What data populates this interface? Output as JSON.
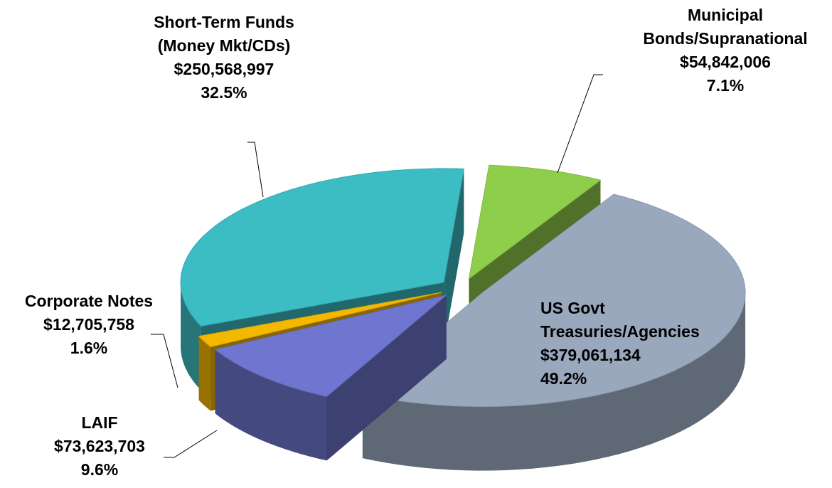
{
  "chart_data": {
    "type": "pie3d",
    "categories": [
      "US Govt Treasuries/Agencies",
      "LAIF",
      "Corporate Notes",
      "Short-Term Funds (Money Mkt/CDs)",
      "Municipal Bonds/Supranational"
    ],
    "values": [
      379061134,
      73623703,
      12705758,
      250568997,
      54842006
    ],
    "value_labels": [
      "$379,061,134",
      "$73,623,703",
      "$12,705,758",
      "$250,568,997",
      "$54,842,006"
    ],
    "percent_labels": [
      "49.2%",
      "9.6%",
      "1.6%",
      "32.5%",
      "7.1%"
    ],
    "colors": [
      "#9aa8bd",
      "#6e76cf",
      "#f5b800",
      "#3cbcc3",
      "#8fce4a"
    ]
  }
}
